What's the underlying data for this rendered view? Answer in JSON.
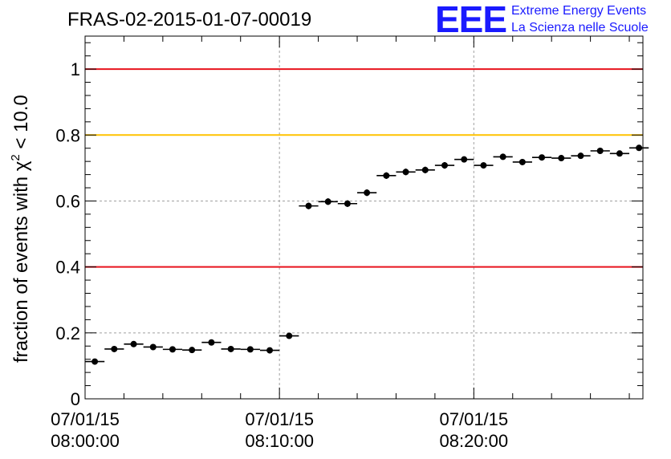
{
  "logo": {
    "mark": "EEE",
    "line1": "Extreme Energy Events",
    "line2": "La Scienza nelle Scuole",
    "color": "#1a1aff"
  },
  "chart_data": {
    "type": "scatter",
    "title": "FRAS-02-2015-01-07-00019",
    "ylabel": "fraction of events with χ² < 10.0",
    "ylabel_parts": {
      "prefix": "fraction of events with ",
      "symbol": "χ",
      "superscript": "2",
      "suffix": " < 10.0"
    },
    "xlabel": "",
    "x_unit": "minutes",
    "xlim": [
      0,
      28.7
    ],
    "ylim": [
      0,
      1.1
    ],
    "x_ticks": [
      {
        "x": 0,
        "date": "07/01/15",
        "time": "08:00:00"
      },
      {
        "x": 10,
        "date": "07/01/15",
        "time": "08:10:00"
      },
      {
        "x": 20,
        "date": "07/01/15",
        "time": "08:20:00"
      }
    ],
    "y_ticks": [
      {
        "y": 0,
        "label": "0"
      },
      {
        "y": 0.2,
        "label": "0.2"
      },
      {
        "y": 0.4,
        "label": "0.4"
      },
      {
        "y": 0.6,
        "label": "0.6"
      },
      {
        "y": 0.8,
        "label": "0.8"
      },
      {
        "y": 1.0,
        "label": "1"
      }
    ],
    "grid": true,
    "reference_lines": [
      {
        "y": 1.0,
        "color": "#e8141e"
      },
      {
        "y": 0.8,
        "color": "#ffc200"
      },
      {
        "y": 0.4,
        "color": "#e8141e"
      }
    ],
    "bin_width": 1,
    "series": [
      {
        "x": [
          0.5,
          1.5,
          2.5,
          3.5,
          4.5,
          5.5,
          6.5,
          7.5,
          8.5,
          9.5,
          10.5,
          11.5,
          12.5,
          13.5,
          14.5,
          15.5,
          16.5,
          17.5,
          18.5,
          19.5,
          20.5,
          21.5,
          22.5,
          23.5,
          24.5,
          25.5,
          26.5,
          27.5,
          28.5
        ],
        "y": [
          0.113,
          0.151,
          0.166,
          0.157,
          0.15,
          0.148,
          0.171,
          0.151,
          0.15,
          0.147,
          0.191,
          0.585,
          0.598,
          0.592,
          0.625,
          0.677,
          0.688,
          0.694,
          0.708,
          0.726,
          0.708,
          0.734,
          0.718,
          0.732,
          0.73,
          0.737,
          0.752,
          0.744,
          0.761
        ],
        "yerr": [
          0.006,
          0.006,
          0.006,
          0.006,
          0.006,
          0.006,
          0.006,
          0.006,
          0.006,
          0.006,
          0.007,
          0.01,
          0.01,
          0.01,
          0.01,
          0.01,
          0.01,
          0.01,
          0.01,
          0.009,
          0.009,
          0.009,
          0.009,
          0.009,
          0.009,
          0.009,
          0.009,
          0.009,
          0.009
        ]
      }
    ]
  }
}
